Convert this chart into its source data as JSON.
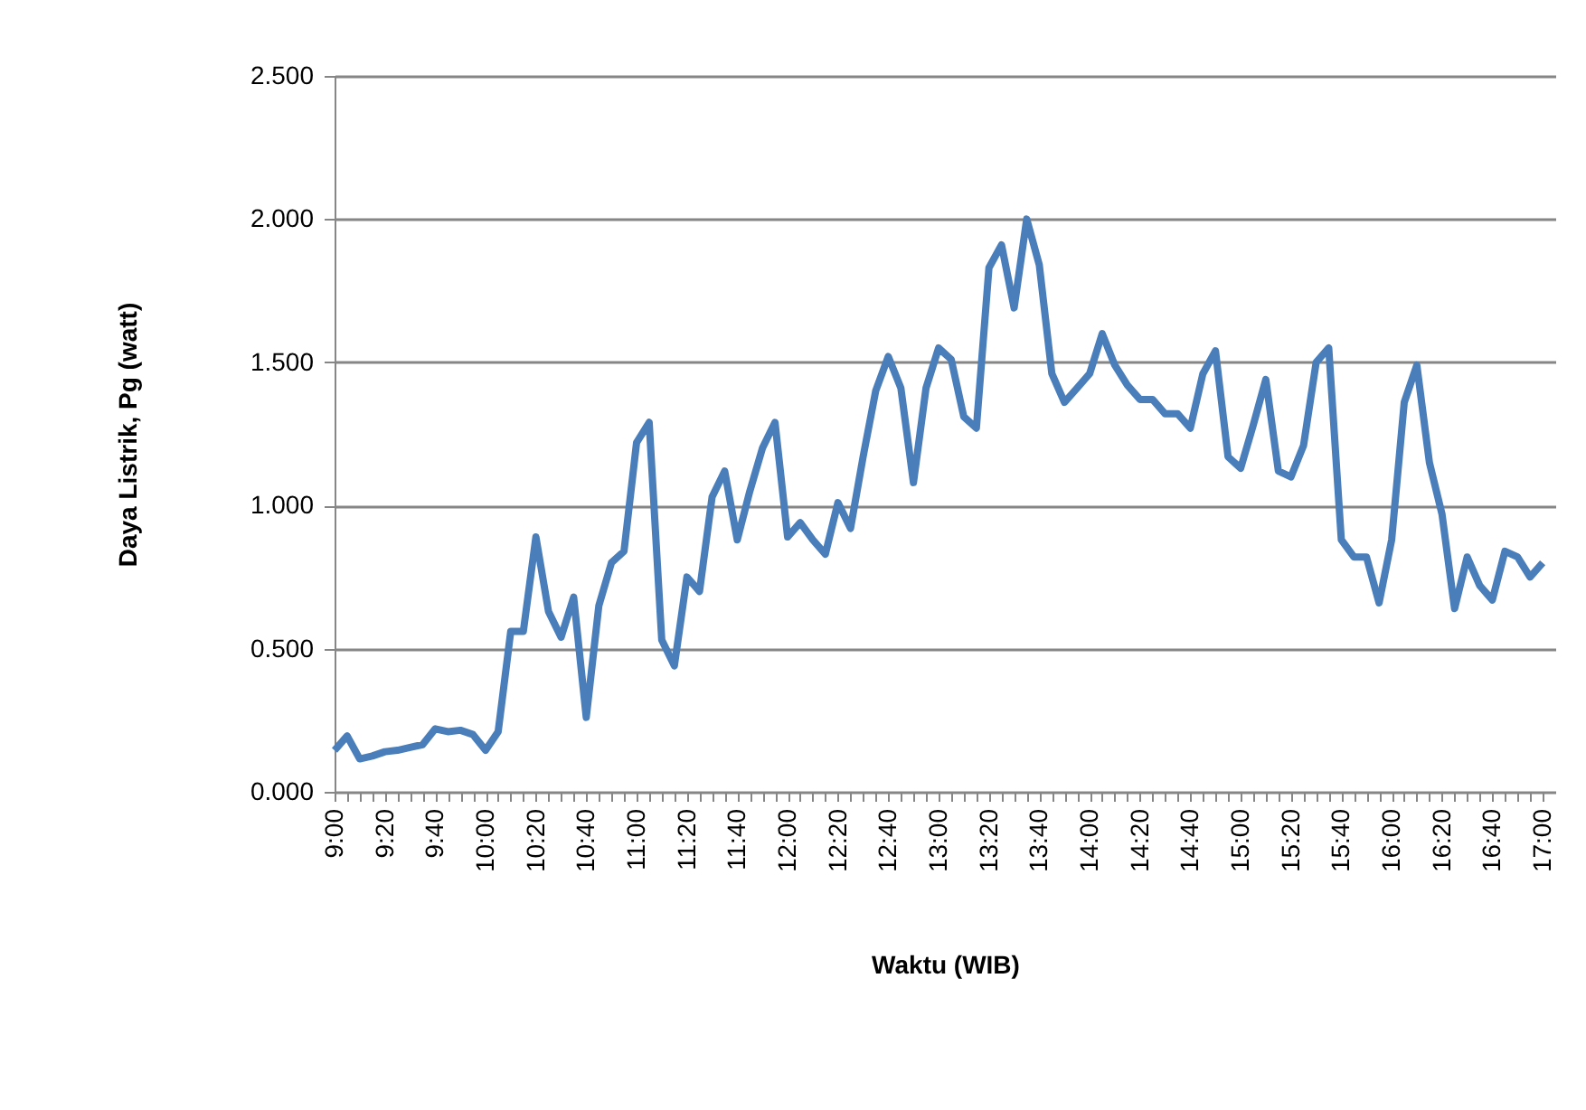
{
  "chart_data": {
    "type": "line",
    "xlabel": "Waktu (WIB)",
    "ylabel": "Daya Listrik, Pg (watt)",
    "categories": [
      "9:00",
      null,
      null,
      null,
      "9:20",
      null,
      null,
      null,
      "9:40",
      null,
      null,
      null,
      "10:00",
      null,
      null,
      null,
      "10:20",
      null,
      null,
      null,
      "10:40",
      null,
      null,
      null,
      "11:00",
      null,
      null,
      null,
      "11:20",
      null,
      null,
      null,
      "11:40",
      null,
      null,
      null,
      "12:00",
      null,
      null,
      null,
      "12:20",
      null,
      null,
      null,
      "12:40",
      null,
      null,
      null,
      "13:00",
      null,
      null,
      null,
      "13:20",
      null,
      null,
      null,
      "13:40",
      null,
      null,
      null,
      "14:00",
      null,
      null,
      null,
      "14:20",
      null,
      null,
      null,
      "14:40",
      null,
      null,
      null,
      "15:00",
      null,
      null,
      null,
      "15:20",
      null,
      null,
      null,
      "15:40",
      null,
      null,
      null,
      "16:00",
      null,
      null,
      null,
      "16:20",
      null,
      null,
      null,
      "16:40",
      null,
      null,
      null,
      "17:00"
    ],
    "series": [
      {
        "color": "#4a7ebb",
        "values": [
          0.145,
          0.195,
          0.115,
          0.125,
          0.14,
          0.145,
          0.155,
          0.165,
          0.22,
          0.21,
          0.215,
          0.2,
          0.145,
          0.21,
          0.56,
          0.56,
          0.89,
          0.63,
          0.54,
          0.68,
          0.26,
          0.65,
          0.8,
          0.84,
          1.22,
          1.29,
          0.53,
          0.44,
          0.75,
          0.7,
          1.03,
          1.12,
          0.88,
          1.05,
          1.2,
          1.29,
          0.89,
          0.94,
          0.88,
          0.83,
          1.01,
          0.92,
          1.17,
          1.4,
          1.52,
          1.41,
          1.08,
          1.41,
          1.55,
          1.51,
          1.31,
          1.27,
          1.83,
          1.91,
          1.69,
          2.0,
          1.84,
          1.46,
          1.36,
          1.41,
          1.46,
          1.6,
          1.49,
          1.42,
          1.37,
          1.37,
          1.32,
          1.32,
          1.27,
          1.46,
          1.54,
          1.17,
          1.13,
          1.28,
          1.44,
          1.12,
          1.1,
          1.21,
          1.5,
          1.55,
          0.88,
          0.82,
          0.82,
          0.66,
          0.88,
          1.36,
          1.49,
          1.15,
          0.97,
          0.64,
          0.82,
          0.72,
          0.67,
          0.84,
          0.82,
          0.75,
          0.8
        ]
      }
    ],
    "ylim": [
      0,
      2.5
    ],
    "yticks": [
      {
        "value": 0,
        "label": "0.000"
      },
      {
        "value": 0.5,
        "label": "0.500"
      },
      {
        "value": 1,
        "label": "1.000"
      },
      {
        "value": 1.5,
        "label": "1.500"
      },
      {
        "value": 2,
        "label": "2.000"
      },
      {
        "value": 2.5,
        "label": "2.500"
      }
    ],
    "grid": "y",
    "legend": false,
    "marker": "none",
    "line_style": "solid"
  }
}
